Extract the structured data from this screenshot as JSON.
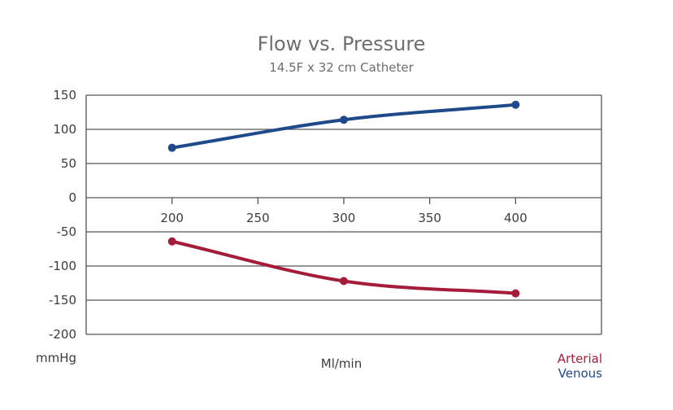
{
  "chart_data": {
    "type": "line",
    "title": "Flow vs. Pressure",
    "subtitle": "14.5F x 32 cm Catheter",
    "xlabel": "Ml/min",
    "ylabel": "mmHg",
    "xlim": [
      150,
      450
    ],
    "ylim": [
      -200,
      150
    ],
    "xticks": [
      200,
      250,
      300,
      350,
      400
    ],
    "xtick_labels": [
      "200",
      "250",
      "300",
      "350",
      "400"
    ],
    "yticks": [
      150,
      100,
      50,
      0,
      -50,
      -100,
      -150,
      -200
    ],
    "ytick_labels": [
      "150",
      "100",
      "50",
      "0",
      "-50",
      "-100",
      "-150",
      "-200"
    ],
    "grid": "horizontal",
    "legend_position": "bottom-right",
    "series": [
      {
        "name": "Arterial",
        "color": "#a51c3a",
        "x": [
          200,
          300,
          400
        ],
        "y": [
          -64,
          -122,
          -140
        ]
      },
      {
        "name": "Venous",
        "color": "#1e4a8c",
        "x": [
          200,
          300,
          400
        ],
        "y": [
          73,
          114,
          136
        ]
      }
    ]
  },
  "colors": {
    "title_text": "#6d6e71",
    "axis_text": "#3c3c3c",
    "frame": "#555555"
  }
}
